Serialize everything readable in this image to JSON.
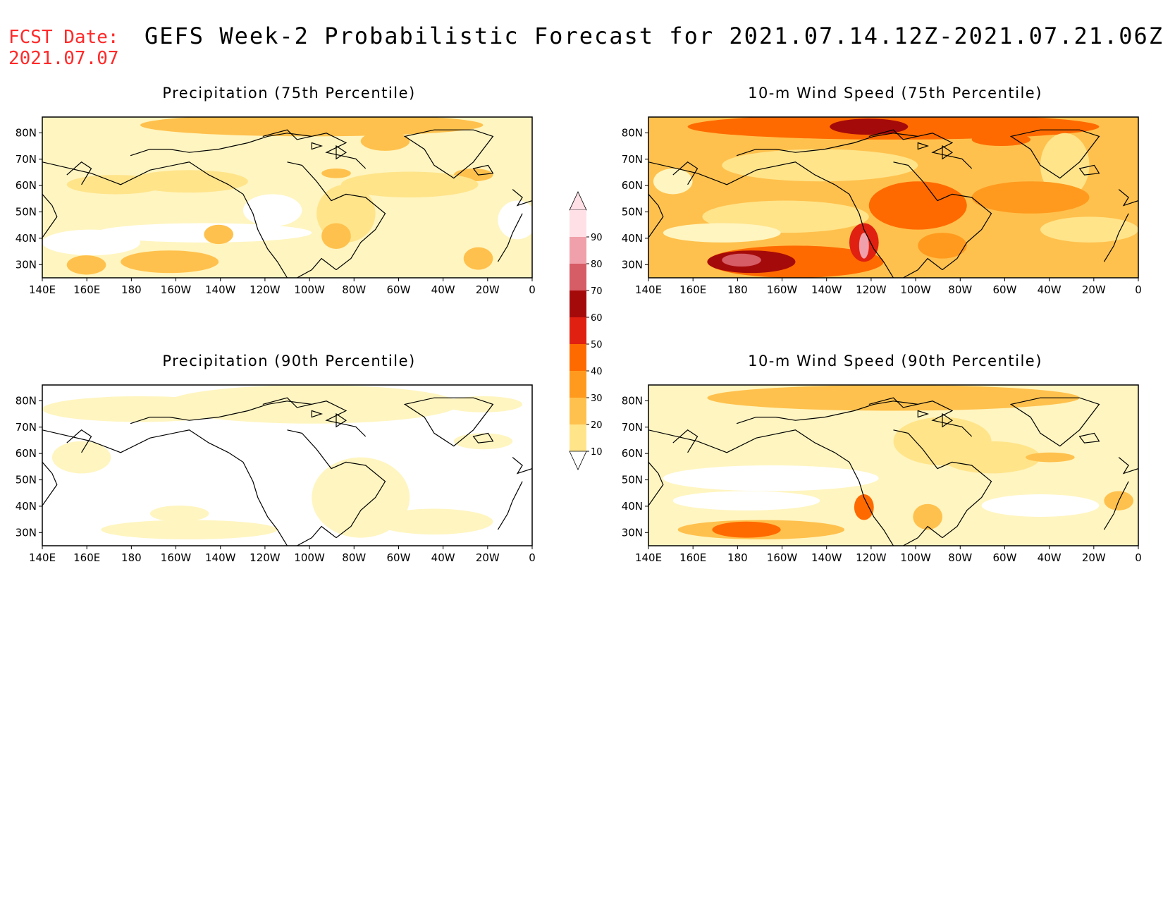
{
  "header": {
    "fcst_line1": "FCST Date:",
    "fcst_line2": "2021.07.07",
    "title": "GEFS Week-2 Probabilistic Forecast for 2021.07.14.12Z-2021.07.21.06Z",
    "title_color": "#ff2a2a"
  },
  "axes": {
    "lat_labels": [
      "80N",
      "70N",
      "60N",
      "50N",
      "40N",
      "30N"
    ],
    "lon_labels": [
      "140E",
      "160E",
      "180",
      "160W",
      "140W",
      "120W",
      "100W",
      "80W",
      "60W",
      "40W",
      "20W",
      "0"
    ]
  },
  "panels": [
    {
      "title": "Precipitation (75th Percentile)",
      "field": "precip75"
    },
    {
      "title": "10-m Wind Speed (75th Percentile)",
      "field": "wind75"
    },
    {
      "title": "Precipitation (90th Percentile)",
      "field": "precip90"
    },
    {
      "title": "10-m Wind Speed (90th Percentile)",
      "field": "wind90"
    }
  ],
  "colorbar": {
    "labels": [
      "90",
      "80",
      "70",
      "60",
      "50",
      "40",
      "30",
      "20",
      "10"
    ],
    "colors": [
      "#ffffff",
      "#fff5c0",
      "#ffe48a",
      "#ffc14d",
      "#ff9a1e",
      "#ff6a00",
      "#e02010",
      "#a50a0a",
      "#d65c66",
      "#f0a0aa",
      "#ffe0e6"
    ]
  }
}
